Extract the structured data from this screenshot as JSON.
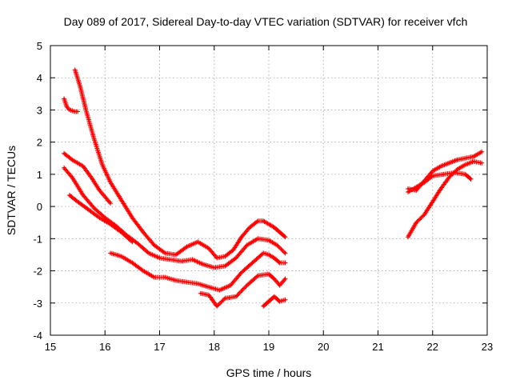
{
  "chart_data": {
    "type": "scatter",
    "title": "Day 089 of 2017, Sidereal Day-to-day VTEC variation (SDTVAR) for receiver vfch",
    "xlabel": "GPS time / hours",
    "ylabel": "SDTVAR / TECUs",
    "xlim": [
      15,
      23
    ],
    "ylim": [
      -4,
      5
    ],
    "xticks": [
      "15",
      "16",
      "17",
      "18",
      "19",
      "20",
      "21",
      "22",
      "23"
    ],
    "yticks": [
      "-4",
      "-3",
      "-2",
      "-1",
      "0",
      "1",
      "2",
      "3",
      "4",
      "5"
    ],
    "grid": true,
    "marker": "+",
    "color": "#ff0000",
    "series": [
      {
        "name": "s1",
        "x": [
          15.25,
          15.3,
          15.35,
          15.45,
          15.5
        ],
        "y": [
          3.35,
          3.1,
          3.0,
          2.95,
          2.95
        ]
      },
      {
        "name": "s2",
        "x": [
          15.45,
          15.55,
          15.65,
          15.8,
          15.95,
          16.1,
          16.3,
          16.5,
          16.7,
          16.9,
          17.1,
          17.3,
          17.5,
          17.7,
          17.9,
          18.05,
          18.2,
          18.35,
          18.5,
          18.65,
          18.8,
          18.9,
          19.0,
          19.1,
          19.2,
          19.3
        ],
        "y": [
          4.25,
          3.7,
          3.0,
          2.1,
          1.3,
          0.75,
          0.2,
          -0.35,
          -0.8,
          -1.2,
          -1.45,
          -1.5,
          -1.25,
          -1.1,
          -1.3,
          -1.6,
          -1.55,
          -1.35,
          -0.95,
          -0.65,
          -0.45,
          -0.45,
          -0.55,
          -0.65,
          -0.8,
          -0.95
        ]
      },
      {
        "name": "s3",
        "x": [
          15.25,
          15.4,
          15.6,
          15.75,
          15.9,
          16.1
        ],
        "y": [
          1.65,
          1.45,
          1.25,
          0.9,
          0.5,
          0.1
        ]
      },
      {
        "name": "s4",
        "x": [
          15.25,
          15.4,
          15.6,
          15.8,
          16.0,
          16.2,
          16.4,
          16.6,
          16.8,
          17.0,
          17.2,
          17.4,
          17.6,
          17.8,
          18.0,
          18.2,
          18.4,
          18.6,
          18.8,
          19.0,
          19.15,
          19.3
        ],
        "y": [
          1.2,
          0.9,
          0.35,
          -0.05,
          -0.35,
          -0.6,
          -0.9,
          -1.15,
          -1.45,
          -1.6,
          -1.65,
          -1.7,
          -1.65,
          -1.8,
          -1.9,
          -1.85,
          -1.6,
          -1.2,
          -1.0,
          -1.05,
          -1.2,
          -1.45
        ]
      },
      {
        "name": "s5",
        "x": [
          15.35,
          15.5,
          15.7,
          15.9,
          16.1,
          16.3,
          16.5
        ],
        "y": [
          0.35,
          0.15,
          -0.1,
          -0.35,
          -0.55,
          -0.8,
          -1.1
        ]
      },
      {
        "name": "s6",
        "x": [
          16.1,
          16.3,
          16.5,
          16.7,
          16.9,
          17.1,
          17.3,
          17.5,
          17.7,
          17.9,
          18.1,
          18.3,
          18.5,
          18.7,
          18.9,
          19.0,
          19.1,
          19.2,
          19.3
        ],
        "y": [
          -1.45,
          -1.55,
          -1.75,
          -2.0,
          -2.2,
          -2.2,
          -2.3,
          -2.35,
          -2.4,
          -2.5,
          -2.6,
          -2.45,
          -2.05,
          -1.75,
          -1.45,
          -1.5,
          -1.6,
          -1.75,
          -1.75
        ]
      },
      {
        "name": "s7",
        "x": [
          17.75,
          17.9,
          18.05,
          18.2,
          18.4,
          18.6,
          18.8,
          19.0,
          19.1,
          19.2,
          19.3
        ],
        "y": [
          -2.7,
          -2.75,
          -3.1,
          -2.85,
          -2.8,
          -2.45,
          -2.15,
          -2.1,
          -2.25,
          -2.45,
          -2.25
        ]
      },
      {
        "name": "s8",
        "x": [
          18.9,
          19.0,
          19.1,
          19.2,
          19.3
        ],
        "y": [
          -3.1,
          -2.95,
          -2.8,
          -2.95,
          -2.9
        ]
      },
      {
        "name": "s9",
        "x": [
          21.55,
          21.7,
          21.85,
          22.0,
          22.15,
          22.3,
          22.45,
          22.6,
          22.75,
          22.9
        ],
        "y": [
          0.55,
          0.5,
          0.8,
          1.1,
          1.25,
          1.35,
          1.45,
          1.5,
          1.55,
          1.7
        ]
      },
      {
        "name": "s10",
        "x": [
          21.55,
          21.7,
          21.85,
          22.0,
          22.2,
          22.4,
          22.6,
          22.7
        ],
        "y": [
          0.45,
          0.6,
          0.75,
          0.95,
          1.0,
          1.05,
          1.0,
          0.85
        ]
      },
      {
        "name": "s11",
        "x": [
          21.55,
          21.7,
          21.85,
          22.0,
          22.15,
          22.3,
          22.45,
          22.6,
          22.75,
          22.9
        ],
        "y": [
          -0.95,
          -0.5,
          -0.25,
          0.15,
          0.55,
          0.9,
          1.15,
          1.3,
          1.4,
          1.35
        ]
      }
    ]
  }
}
